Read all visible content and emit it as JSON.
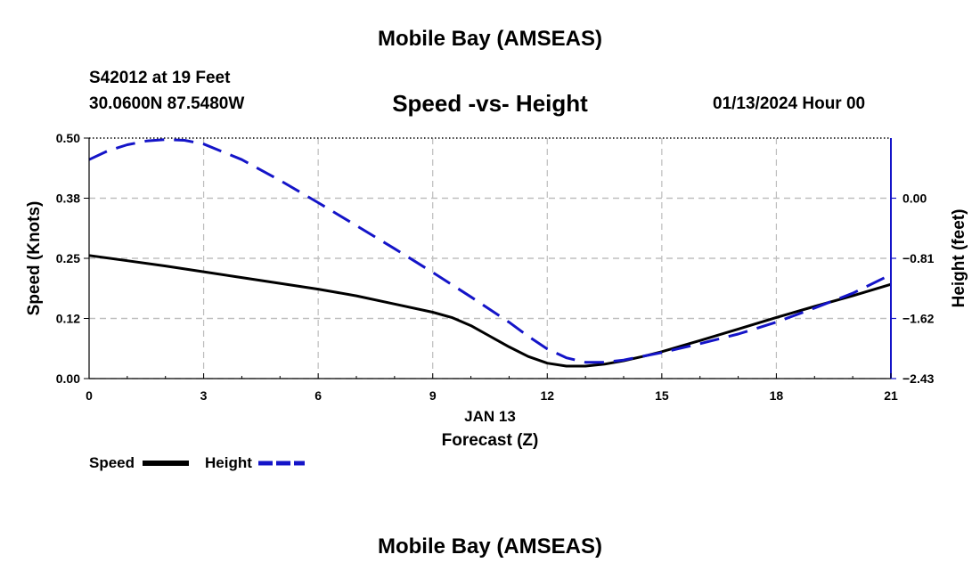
{
  "page": {
    "title_top": "Mobile Bay (AMSEAS)",
    "title_bottom": "Mobile Bay (AMSEAS)",
    "station": "S42012 at 19 Feet",
    "coords": "30.0600N  87.5480W",
    "subtitle": "Speed -vs- Height",
    "datetime": "01/13/2024 Hour 00"
  },
  "colors": {
    "speed": "#000000",
    "height": "#1414c8",
    "grid": "#bdbdbd"
  },
  "chart_data": {
    "type": "line",
    "title": "Speed -vs- Height",
    "xlabel": "Forecast (Z)",
    "xlabel_date": "JAN 13",
    "ylabel": "Speed (Knots)",
    "y2label": "Height (feet)",
    "xlim": [
      0,
      21
    ],
    "ylim": [
      0,
      0.5
    ],
    "y2lim": [
      -2.43,
      0.81
    ],
    "xticks": [
      0,
      3,
      6,
      9,
      12,
      15,
      18,
      21
    ],
    "xtick_labels": [
      "0",
      "3",
      "6",
      "9",
      "12",
      "15",
      "18",
      "21"
    ],
    "yticks": [
      0.0,
      0.125,
      0.25,
      0.375,
      0.5
    ],
    "ytick_labels": [
      "0.00",
      "0.12",
      "0.25",
      "0.38",
      "0.50"
    ],
    "y2ticks": [
      -2.43,
      -1.62,
      -0.81,
      0.0
    ],
    "y2tick_labels": [
      "-2.43",
      "-1.62",
      "-0.81",
      "0.00"
    ],
    "grid": true,
    "legend_position": "bottom-left",
    "series": [
      {
        "name": "Speed",
        "axis": "left",
        "style": "solid",
        "x": [
          0,
          1,
          2,
          3,
          4,
          5,
          6,
          7,
          8,
          9,
          9.5,
          10,
          10.5,
          11,
          11.5,
          12,
          12.5,
          13,
          13.5,
          14,
          14.5,
          15,
          16,
          17,
          18,
          19,
          20,
          21
        ],
        "values": [
          0.256,
          0.245,
          0.234,
          0.222,
          0.21,
          0.198,
          0.186,
          0.172,
          0.155,
          0.138,
          0.127,
          0.11,
          0.088,
          0.066,
          0.046,
          0.032,
          0.026,
          0.026,
          0.03,
          0.037,
          0.046,
          0.056,
          0.079,
          0.103,
          0.127,
          0.15,
          0.172,
          0.196
        ]
      },
      {
        "name": "Height",
        "axis": "right",
        "style": "dashed",
        "x": [
          0,
          0.5,
          1,
          1.5,
          2,
          2.5,
          3,
          4,
          5,
          6,
          7,
          8,
          9,
          10,
          11,
          11.5,
          12,
          12.5,
          13,
          13.5,
          14,
          15,
          16,
          17,
          18,
          19,
          20,
          21
        ],
        "values": [
          0.52,
          0.64,
          0.72,
          0.77,
          0.79,
          0.78,
          0.73,
          0.52,
          0.24,
          -0.06,
          -0.37,
          -0.68,
          -1.0,
          -1.33,
          -1.67,
          -1.86,
          -2.03,
          -2.15,
          -2.21,
          -2.21,
          -2.18,
          -2.08,
          -1.96,
          -1.83,
          -1.67,
          -1.48,
          -1.28,
          -1.03
        ]
      }
    ]
  }
}
